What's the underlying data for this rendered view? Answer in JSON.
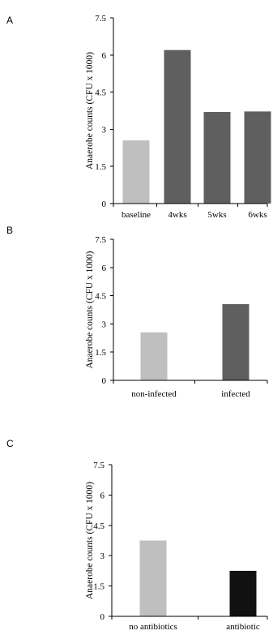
{
  "colors": {
    "light_gray": "#bfbfbf",
    "dark_gray": "#5f5f5f",
    "black": "#111111"
  },
  "chart_data": [
    {
      "panel": "A",
      "type": "bar",
      "categories": [
        "baseline",
        "4wks",
        "5wks",
        "6wks"
      ],
      "values": [
        2.55,
        6.2,
        3.7,
        3.72
      ],
      "bar_colors": [
        "light_gray",
        "dark_gray",
        "dark_gray",
        "dark_gray"
      ],
      "ylabel": "Anaerobe counts  (CFU x 1000)",
      "xlabel": "",
      "ylim": [
        0,
        7.5
      ],
      "yticks": [
        "0",
        "1.5",
        "3",
        "4.5",
        "6",
        "7.5"
      ],
      "grid": false,
      "legend": "none"
    },
    {
      "panel": "B",
      "type": "bar",
      "categories": [
        "non-infected",
        "infected"
      ],
      "values": [
        2.55,
        4.05
      ],
      "bar_colors": [
        "light_gray",
        "dark_gray"
      ],
      "ylabel": "Anaerobe counts (CFU x 1000)",
      "xlabel": "",
      "ylim": [
        0,
        7.5
      ],
      "yticks": [
        "0",
        "1.5",
        "3",
        "4.5",
        "6",
        "7.5"
      ],
      "grid": false,
      "legend": "none"
    },
    {
      "panel": "C",
      "type": "bar",
      "categories": [
        "no antibiotics",
        "antibiotic"
      ],
      "values": [
        3.75,
        2.25
      ],
      "bar_colors": [
        "light_gray",
        "black"
      ],
      "ylabel": "Anaerobe counts (CFU x 1000)",
      "xlabel": "",
      "ylim": [
        0,
        7.5
      ],
      "yticks": [
        "0",
        "1.5",
        "3",
        "4.5",
        "6",
        "7.5"
      ],
      "grid": false,
      "legend": "none"
    }
  ]
}
